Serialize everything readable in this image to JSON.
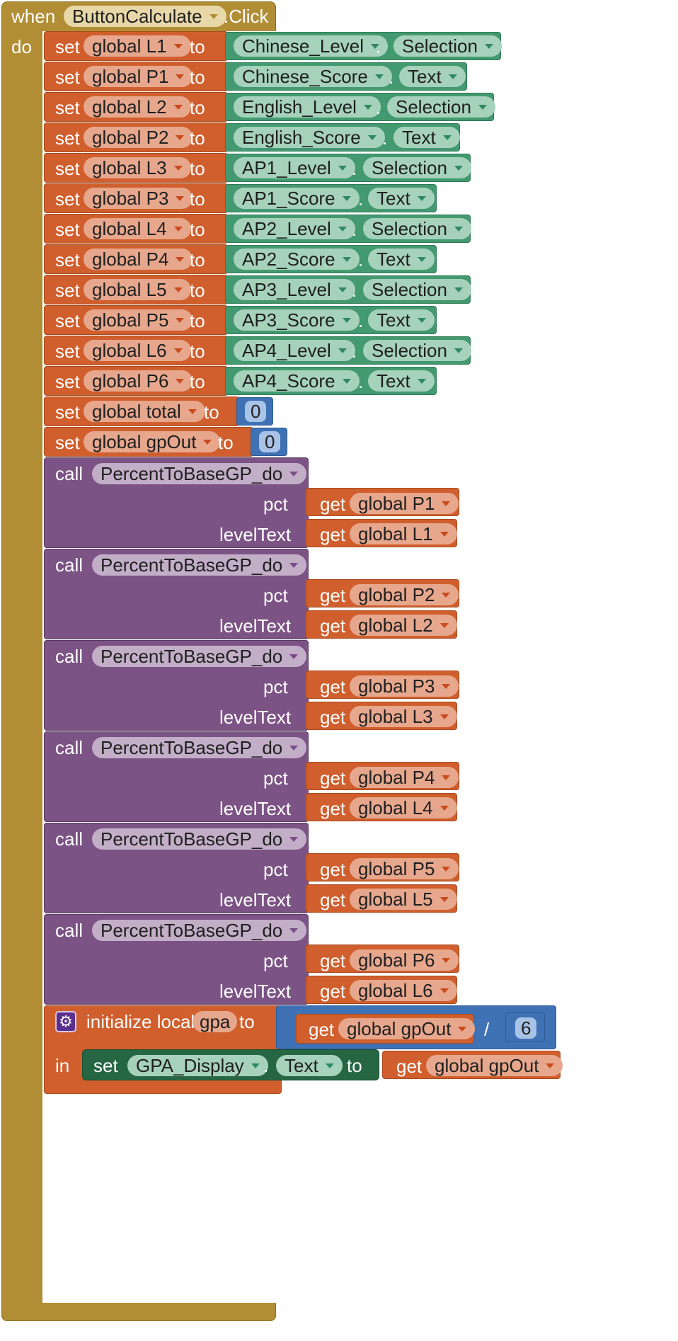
{
  "event": {
    "when": "when",
    "component": "ButtonCalculate",
    "event": ".Click",
    "do": "do"
  },
  "kw": {
    "set": "set",
    "to": "to",
    "get": "get",
    "dot": ".",
    "call": "call",
    "pct": "pct",
    "levelText": "levelText",
    "init_local": "initialize local",
    "in": "in",
    "divide": "/"
  },
  "sets": [
    {
      "var": "global L1",
      "comp": "Chinese_Level",
      "prop": "Selection"
    },
    {
      "var": "global P1",
      "comp": "Chinese_Score",
      "prop": "Text"
    },
    {
      "var": "global L2",
      "comp": "English_Level",
      "prop": "Selection"
    },
    {
      "var": "global P2",
      "comp": "English_Score",
      "prop": "Text"
    },
    {
      "var": "global L3",
      "comp": "AP1_Level",
      "prop": "Selection"
    },
    {
      "var": "global P3",
      "comp": "AP1_Score",
      "prop": "Text"
    },
    {
      "var": "global L4",
      "comp": "AP2_Level",
      "prop": "Selection"
    },
    {
      "var": "global P4",
      "comp": "AP2_Score",
      "prop": "Text"
    },
    {
      "var": "global L5",
      "comp": "AP3_Level",
      "prop": "Selection"
    },
    {
      "var": "global P5",
      "comp": "AP3_Score",
      "prop": "Text"
    },
    {
      "var": "global L6",
      "comp": "AP4_Level",
      "prop": "Selection"
    },
    {
      "var": "global P6",
      "comp": "AP4_Score",
      "prop": "Text"
    }
  ],
  "num_sets": [
    {
      "var": "global total",
      "value": "0"
    },
    {
      "var": "global gpOut",
      "value": "0"
    }
  ],
  "calls": [
    {
      "proc": "PercentToBaseGP_do",
      "pct": "global P1",
      "level": "global L1"
    },
    {
      "proc": "PercentToBaseGP_do",
      "pct": "global P2",
      "level": "global L2"
    },
    {
      "proc": "PercentToBaseGP_do",
      "pct": "global P3",
      "level": "global L3"
    },
    {
      "proc": "PercentToBaseGP_do",
      "pct": "global P4",
      "level": "global L4"
    },
    {
      "proc": "PercentToBaseGP_do",
      "pct": "global P5",
      "level": "global L5"
    },
    {
      "proc": "PercentToBaseGP_do",
      "pct": "global P6",
      "level": "global L6"
    }
  ],
  "local": {
    "name": "gpa",
    "get_var": "global gpOut",
    "divisor": "6"
  },
  "final_set": {
    "comp": "GPA_Display",
    "prop": "Text",
    "get_var": "global gpOut"
  },
  "colors": {
    "event": "#b18e35",
    "variables": "#d05f2d",
    "components": "#439970",
    "procedures": "#7c5385",
    "math": "#3f71b5",
    "setter": "#266643"
  }
}
